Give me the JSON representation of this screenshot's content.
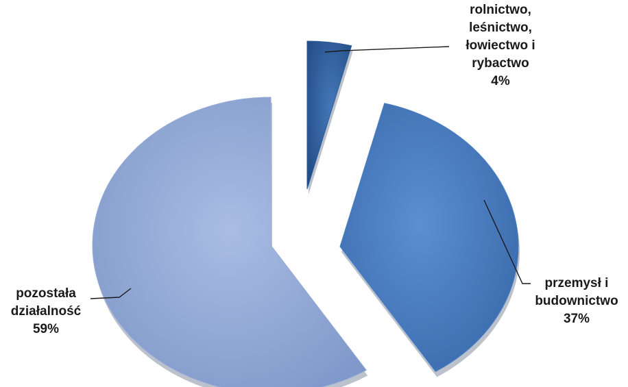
{
  "chart_data": {
    "type": "pie",
    "style": "exploded-3d",
    "slices": [
      {
        "name_lines": [
          "rolnictwo,",
          "leśnictwo,",
          "łowiectwo i",
          "rybactwo"
        ],
        "value": 4,
        "value_label": "4%",
        "color": "#2e5d9c"
      },
      {
        "name_lines": [
          "przemysł i",
          "budownictwo"
        ],
        "value": 37,
        "value_label": "37%",
        "color": "#4a7fc4"
      },
      {
        "name_lines": [
          "pozostała",
          "działalność"
        ],
        "value": 59,
        "value_label": "59%",
        "color": "#95abd7"
      }
    ]
  }
}
